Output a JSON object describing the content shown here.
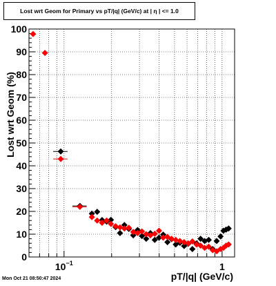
{
  "chart_data": {
    "type": "scatter",
    "title": "Lost wrt Geom for Primary vs pT/|q| (GeV/c) at | η | <= 1.0",
    "xlabel": "pT/|q| (GeV/c)",
    "ylabel": "Lost wrt Geom (%)",
    "x_scale": "log",
    "xlim": [
      0.06,
      1.2
    ],
    "ylim": [
      0,
      100
    ],
    "grid": true,
    "x_ticks": [
      {
        "value": 0.1,
        "base": "10",
        "exp": "−1"
      },
      {
        "value": 1,
        "base": "1",
        "exp": ""
      }
    ],
    "y_ticks": [
      {
        "value": 0,
        "label": "0"
      },
      {
        "value": 10,
        "label": "10"
      },
      {
        "value": 20,
        "label": "20"
      },
      {
        "value": 30,
        "label": "30"
      },
      {
        "value": 40,
        "label": "40"
      },
      {
        "value": 50,
        "label": "50"
      },
      {
        "value": 60,
        "label": "60"
      },
      {
        "value": 70,
        "label": "70"
      },
      {
        "value": 80,
        "label": "80"
      },
      {
        "value": 90,
        "label": "90"
      },
      {
        "value": 100,
        "label": "100"
      }
    ],
    "series": [
      {
        "color": "#000000",
        "points": [
          {
            "x": 0.0953,
            "y": 46.3,
            "xerr": [
              0.0853,
              0.1053
            ]
          },
          {
            "x": 0.126,
            "y": 22.4,
            "xerr": [
              0.113,
              0.139
            ]
          },
          {
            "x": 0.15,
            "y": 19.0,
            "xerr": [
              0.144,
              0.156
            ]
          },
          {
            "x": 0.162,
            "y": 19.8,
            "xerr": [
              0.156,
              0.168
            ]
          },
          {
            "x": 0.174,
            "y": 16.2
          },
          {
            "x": 0.186,
            "y": 15.5
          },
          {
            "x": 0.198,
            "y": 16.3
          },
          {
            "x": 0.212,
            "y": 13.1
          },
          {
            "x": 0.226,
            "y": 10.5
          },
          {
            "x": 0.241,
            "y": 14.0
          },
          {
            "x": 0.257,
            "y": 12.3
          },
          {
            "x": 0.274,
            "y": 9.5
          },
          {
            "x": 0.292,
            "y": 11.8
          },
          {
            "x": 0.311,
            "y": 9.2
          },
          {
            "x": 0.331,
            "y": 8.0
          },
          {
            "x": 0.352,
            "y": 10.5
          },
          {
            "x": 0.375,
            "y": 7.5
          },
          {
            "x": 0.399,
            "y": 8.5
          },
          {
            "x": 0.424,
            "y": 9.8
          },
          {
            "x": 0.451,
            "y": 6.5
          },
          {
            "x": 0.479,
            "y": 7.8
          },
          {
            "x": 0.509,
            "y": 5.5
          },
          {
            "x": 0.541,
            "y": 6.2
          },
          {
            "x": 0.575,
            "y": 4.8
          },
          {
            "x": 0.611,
            "y": 5.8
          },
          {
            "x": 0.649,
            "y": 3.5
          },
          {
            "x": 0.689,
            "y": 6.0
          },
          {
            "x": 0.731,
            "y": 8.0
          },
          {
            "x": 0.776,
            "y": 7.0
          },
          {
            "x": 0.823,
            "y": 7.5
          },
          {
            "x": 0.872,
            "y": 3.5
          },
          {
            "x": 0.924,
            "y": 7.0
          },
          {
            "x": 0.978,
            "y": 9.0
          },
          {
            "x": 1.02,
            "y": 11.5
          },
          {
            "x": 1.06,
            "y": 12.0
          },
          {
            "x": 1.1,
            "y": 12.5
          }
        ]
      },
      {
        "color": "#ff0000",
        "points": [
          {
            "x": 0.0637,
            "y": 97.8
          },
          {
            "x": 0.0757,
            "y": 89.5
          },
          {
            "x": 0.0953,
            "y": 43.0,
            "xerr": [
              0.0853,
              0.1053
            ]
          },
          {
            "x": 0.126,
            "y": 22.0,
            "xerr": [
              0.113,
              0.139
            ]
          },
          {
            "x": 0.15,
            "y": 17.5,
            "xerr": [
              0.144,
              0.156
            ]
          },
          {
            "x": 0.162,
            "y": 16.0,
            "xerr": [
              0.156,
              0.168
            ]
          },
          {
            "x": 0.174,
            "y": 15.0
          },
          {
            "x": 0.186,
            "y": 16.0
          },
          {
            "x": 0.198,
            "y": 14.5
          },
          {
            "x": 0.212,
            "y": 13.5
          },
          {
            "x": 0.226,
            "y": 13.0
          },
          {
            "x": 0.241,
            "y": 12.5
          },
          {
            "x": 0.257,
            "y": 12.8
          },
          {
            "x": 0.274,
            "y": 11.0
          },
          {
            "x": 0.292,
            "y": 10.5
          },
          {
            "x": 0.311,
            "y": 11.2
          },
          {
            "x": 0.331,
            "y": 10.0
          },
          {
            "x": 0.352,
            "y": 9.5
          },
          {
            "x": 0.375,
            "y": 10.2
          },
          {
            "x": 0.399,
            "y": 11.5
          },
          {
            "x": 0.424,
            "y": 8.5
          },
          {
            "x": 0.451,
            "y": 8.8
          },
          {
            "x": 0.479,
            "y": 8.0
          },
          {
            "x": 0.509,
            "y": 7.5
          },
          {
            "x": 0.541,
            "y": 7.0
          },
          {
            "x": 0.575,
            "y": 6.5
          },
          {
            "x": 0.611,
            "y": 6.0
          },
          {
            "x": 0.649,
            "y": 6.8
          },
          {
            "x": 0.689,
            "y": 5.5
          },
          {
            "x": 0.731,
            "y": 5.0
          },
          {
            "x": 0.776,
            "y": 4.0
          },
          {
            "x": 0.823,
            "y": 4.5
          },
          {
            "x": 0.872,
            "y": 3.0
          },
          {
            "x": 0.924,
            "y": 2.5
          },
          {
            "x": 0.978,
            "y": 3.5
          },
          {
            "x": 1.02,
            "y": 4.0
          },
          {
            "x": 1.06,
            "y": 5.0
          },
          {
            "x": 1.1,
            "y": 5.5
          }
        ]
      }
    ]
  },
  "footer": {
    "timestamp": "Mon Oct 21 08:50:47 2024"
  }
}
